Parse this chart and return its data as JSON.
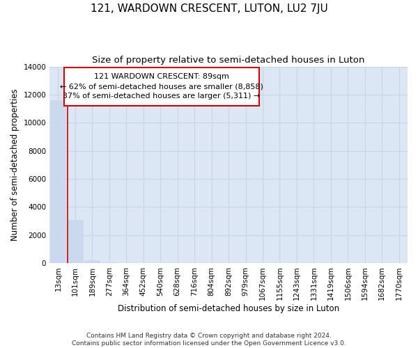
{
  "title": "121, WARDOWN CRESCENT, LUTON, LU2 7JU",
  "subtitle": "Size of property relative to semi-detached houses in Luton",
  "xlabel": "Distribution of semi-detached houses by size in Luton",
  "ylabel": "Number of semi-detached properties",
  "footnote1": "Contains HM Land Registry data © Crown copyright and database right 2024.",
  "footnote2": "Contains public sector information licensed under the Open Government Licence v3.0.",
  "annotation_line1": "121 WARDOWN CRESCENT: 89sqm",
  "annotation_line2": "← 62% of semi-detached houses are smaller (8,858)",
  "annotation_line3": "37% of semi-detached houses are larger (5,311) →",
  "bar_color": "#cad9ed",
  "bar_edge_color": "#cad9ed",
  "grid_color": "#c8d4e8",
  "background_color": "#dce6f5",
  "redline_color": "#cc0000",
  "annotation_box_color": "#ffffff",
  "annotation_box_edge": "#cc0000",
  "categories": [
    "13sqm",
    "101sqm",
    "189sqm",
    "277sqm",
    "364sqm",
    "452sqm",
    "540sqm",
    "628sqm",
    "716sqm",
    "804sqm",
    "892sqm",
    "979sqm",
    "1067sqm",
    "1155sqm",
    "1243sqm",
    "1331sqm",
    "1419sqm",
    "1506sqm",
    "1594sqm",
    "1682sqm",
    "1770sqm"
  ],
  "values": [
    11600,
    3050,
    200,
    20,
    5,
    2,
    1,
    1,
    0,
    0,
    0,
    0,
    0,
    0,
    0,
    0,
    0,
    0,
    0,
    0,
    0
  ],
  "ylim": [
    0,
    14000
  ],
  "yticks": [
    0,
    2000,
    4000,
    6000,
    8000,
    10000,
    12000,
    14000
  ],
  "redline_x": 0.57,
  "title_fontsize": 11,
  "subtitle_fontsize": 9.5,
  "axis_label_fontsize": 8.5,
  "tick_fontsize": 7.5,
  "annotation_fontsize": 8
}
